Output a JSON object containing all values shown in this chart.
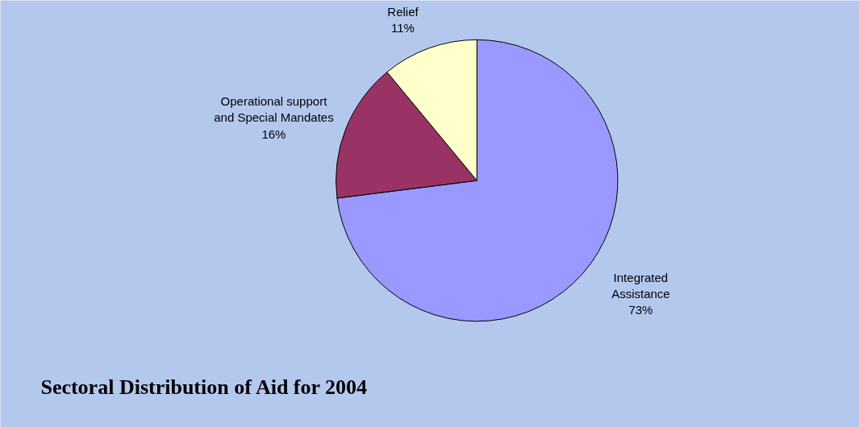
{
  "chart_data": {
    "type": "pie",
    "title": "Sectoral Distribution of Aid for 2004",
    "categories": [
      "Integrated Assistance",
      "Operational support and Special Mandates",
      "Relief"
    ],
    "values": [
      73,
      16,
      11
    ],
    "colors": [
      "#9999ff",
      "#993366",
      "#ffffcc"
    ],
    "value_labels": [
      "73%",
      "16%",
      "11%"
    ]
  }
}
